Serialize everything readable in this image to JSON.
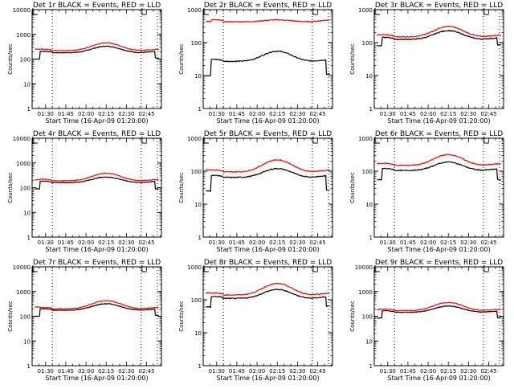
{
  "chart_data": [
    {
      "type": "line",
      "title": "Det 1r BLACK = Events, RED = LLD",
      "xlabel": "Start Time (16-Apr-09 01:20:00)",
      "ylabel": "Counts/sec",
      "yscale": "log",
      "ylim": [
        1,
        10000
      ],
      "yticks": [
        "1",
        "10",
        "100",
        "1000",
        "10000"
      ],
      "xlim": [
        "01:20",
        "02:56"
      ],
      "xticks": [
        "01:30",
        "01:45",
        "02:00",
        "02:15",
        "02:30",
        "02:45"
      ],
      "vlines": [
        "01:35",
        "02:41",
        "02:53"
      ],
      "series": [
        {
          "name": "Events",
          "color": "#000000",
          "base": 180,
          "peak": 330,
          "start": 100,
          "end": 110
        },
        {
          "name": "LLD",
          "color": "#ff0000",
          "base": 220,
          "peak": 450,
          "start": 250,
          "end": 290
        }
      ]
    },
    {
      "type": "line",
      "title": "Det 2r BLACK = Events, RED = LLD",
      "xlabel": "Start Time (16-Apr-09 01:20:00)",
      "ylabel": "Counts/sec",
      "yscale": "log",
      "ylim": [
        1,
        1000
      ],
      "yticks": [
        "1",
        "10",
        "100",
        "1000"
      ],
      "xlim": [
        "01:20",
        "02:56"
      ],
      "xticks": [
        "01:30",
        "01:45",
        "02:00",
        "02:15",
        "02:30",
        "02:45"
      ],
      "vlines": [
        "01:35",
        "02:41",
        "02:53"
      ],
      "series": [
        {
          "name": "Events",
          "color": "#000000",
          "base": 27,
          "peak": 55,
          "start": 10,
          "end": 11
        },
        {
          "name": "LLD",
          "color": "#ff0000",
          "base": 430,
          "peak": 490,
          "start": 440,
          "end": 440
        }
      ]
    },
    {
      "type": "line",
      "title": "Det 3r BLACK = Events, RED = LLD",
      "xlabel": "Start Time (16-Apr-09 01:20:00)",
      "ylabel": "Counts/sec",
      "yscale": "log",
      "ylim": [
        1,
        1000
      ],
      "yticks": [
        "1",
        "10",
        "100",
        "1000"
      ],
      "xlim": [
        "01:20",
        "02:56"
      ],
      "xticks": [
        "01:30",
        "01:45",
        "02:00",
        "02:15",
        "02:30",
        "02:45"
      ],
      "vlines": [
        "01:35",
        "02:41",
        "02:53"
      ],
      "series": [
        {
          "name": "Events",
          "color": "#000000",
          "base": 125,
          "peak": 230,
          "start": 80,
          "end": 85
        },
        {
          "name": "LLD",
          "color": "#ff0000",
          "base": 150,
          "peak": 310,
          "start": 170,
          "end": 200
        }
      ]
    },
    {
      "type": "line",
      "title": "Det 4r BLACK = Events, RED = LLD",
      "xlabel": "Start Time (16-Apr-09 01:20:00)",
      "ylabel": "Counts/sec",
      "yscale": "log",
      "ylim": [
        1,
        10000
      ],
      "yticks": [
        "1",
        "10",
        "100",
        "1000",
        "10000"
      ],
      "xlim": [
        "01:20",
        "02:56"
      ],
      "xticks": [
        "01:30",
        "01:45",
        "02:00",
        "02:15",
        "02:30",
        "02:45"
      ],
      "vlines": [
        "01:35",
        "02:41",
        "02:53"
      ],
      "series": [
        {
          "name": "Events",
          "color": "#000000",
          "base": 160,
          "peak": 270,
          "start": 90,
          "end": 90
        },
        {
          "name": "LLD",
          "color": "#ff0000",
          "base": 190,
          "peak": 380,
          "start": 210,
          "end": 240
        }
      ]
    },
    {
      "type": "line",
      "title": "Det 5r BLACK = Events, RED = LLD",
      "xlabel": "Start Time (16-Apr-09 01:20:00)",
      "ylabel": "Counts/sec",
      "yscale": "log",
      "ylim": [
        1,
        1000
      ],
      "yticks": [
        "1",
        "10",
        "100",
        "1000"
      ],
      "xlim": [
        "01:20",
        "02:56"
      ],
      "xticks": [
        "01:30",
        "01:45",
        "02:00",
        "02:15",
        "02:30",
        "02:45"
      ],
      "vlines": [
        "01:35",
        "02:41",
        "02:53"
      ],
      "series": [
        {
          "name": "Events",
          "color": "#000000",
          "base": 65,
          "peak": 120,
          "start": 25,
          "end": 27
        },
        {
          "name": "LLD",
          "color": "#ff0000",
          "base": 95,
          "peak": 220,
          "start": 110,
          "end": 140
        }
      ]
    },
    {
      "type": "line",
      "title": "Det 6r BLACK = Events, RED = LLD",
      "xlabel": "Start Time (16-Apr-09 01:20:00)",
      "ylabel": "Counts/sec",
      "yscale": "log",
      "ylim": [
        1,
        1000
      ],
      "yticks": [
        "1",
        "10",
        "100",
        "1000"
      ],
      "xlim": [
        "01:20",
        "02:56"
      ],
      "xticks": [
        "01:30",
        "01:45",
        "02:00",
        "02:15",
        "02:30",
        "02:45"
      ],
      "vlines": [
        "01:35",
        "02:41",
        "02:53"
      ],
      "series": [
        {
          "name": "Events",
          "color": "#000000",
          "base": 105,
          "peak": 190,
          "start": 55,
          "end": 55
        },
        {
          "name": "LLD",
          "color": "#ff0000",
          "base": 150,
          "peak": 320,
          "start": 170,
          "end": 195
        }
      ]
    },
    {
      "type": "line",
      "title": "Det 7r BLACK = Events, RED = LLD",
      "xlabel": "Start Time (16-Apr-09 01:20:00)",
      "ylabel": "Counts/sec",
      "yscale": "log",
      "ylim": [
        1,
        10000
      ],
      "yticks": [
        "1",
        "10",
        "100",
        "1000",
        "10000"
      ],
      "xlim": [
        "01:20",
        "02:56"
      ],
      "xticks": [
        "01:30",
        "01:45",
        "02:00",
        "02:15",
        "02:30",
        "02:45"
      ],
      "vlines": [
        "01:35",
        "02:41",
        "02:53"
      ],
      "series": [
        {
          "name": "Events",
          "color": "#000000",
          "base": 175,
          "peak": 320,
          "start": 100,
          "end": 110
        },
        {
          "name": "LLD",
          "color": "#ff0000",
          "base": 200,
          "peak": 430,
          "start": 240,
          "end": 270
        }
      ]
    },
    {
      "type": "line",
      "title": "Det 8r BLACK = Events, RED = LLD",
      "xlabel": "Start Time (16-Apr-09 01:20:00)",
      "ylabel": "Counts/sec",
      "yscale": "log",
      "ylim": [
        1,
        1000
      ],
      "yticks": [
        "1",
        "10",
        "100",
        "1000"
      ],
      "xlim": [
        "01:20",
        "02:56"
      ],
      "xticks": [
        "01:30",
        "01:45",
        "02:00",
        "02:15",
        "02:30",
        "02:45"
      ],
      "vlines": [
        "01:35",
        "02:41",
        "02:53"
      ],
      "series": [
        {
          "name": "Events",
          "color": "#000000",
          "base": 110,
          "peak": 205,
          "start": 60,
          "end": 65
        },
        {
          "name": "LLD",
          "color": "#ff0000",
          "base": 140,
          "peak": 310,
          "start": 165,
          "end": 195
        }
      ]
    },
    {
      "type": "line",
      "title": "Det 9r BLACK = Events, RED = LLD",
      "xlabel": "Start Time (16-Apr-09 01:20:00)",
      "ylabel": "Counts/sec",
      "yscale": "log",
      "ylim": [
        1,
        10000
      ],
      "yticks": [
        "1",
        "10",
        "100",
        "1000",
        "10000"
      ],
      "xlim": [
        "01:20",
        "02:56"
      ],
      "xticks": [
        "01:30",
        "01:45",
        "02:00",
        "02:15",
        "02:30",
        "02:45"
      ],
      "vlines": [
        "01:35",
        "02:41",
        "02:53"
      ],
      "series": [
        {
          "name": "Events",
          "color": "#000000",
          "base": 145,
          "peak": 260,
          "start": 85,
          "end": 90
        },
        {
          "name": "LLD",
          "color": "#ff0000",
          "base": 170,
          "peak": 360,
          "start": 190,
          "end": 220
        }
      ]
    }
  ]
}
